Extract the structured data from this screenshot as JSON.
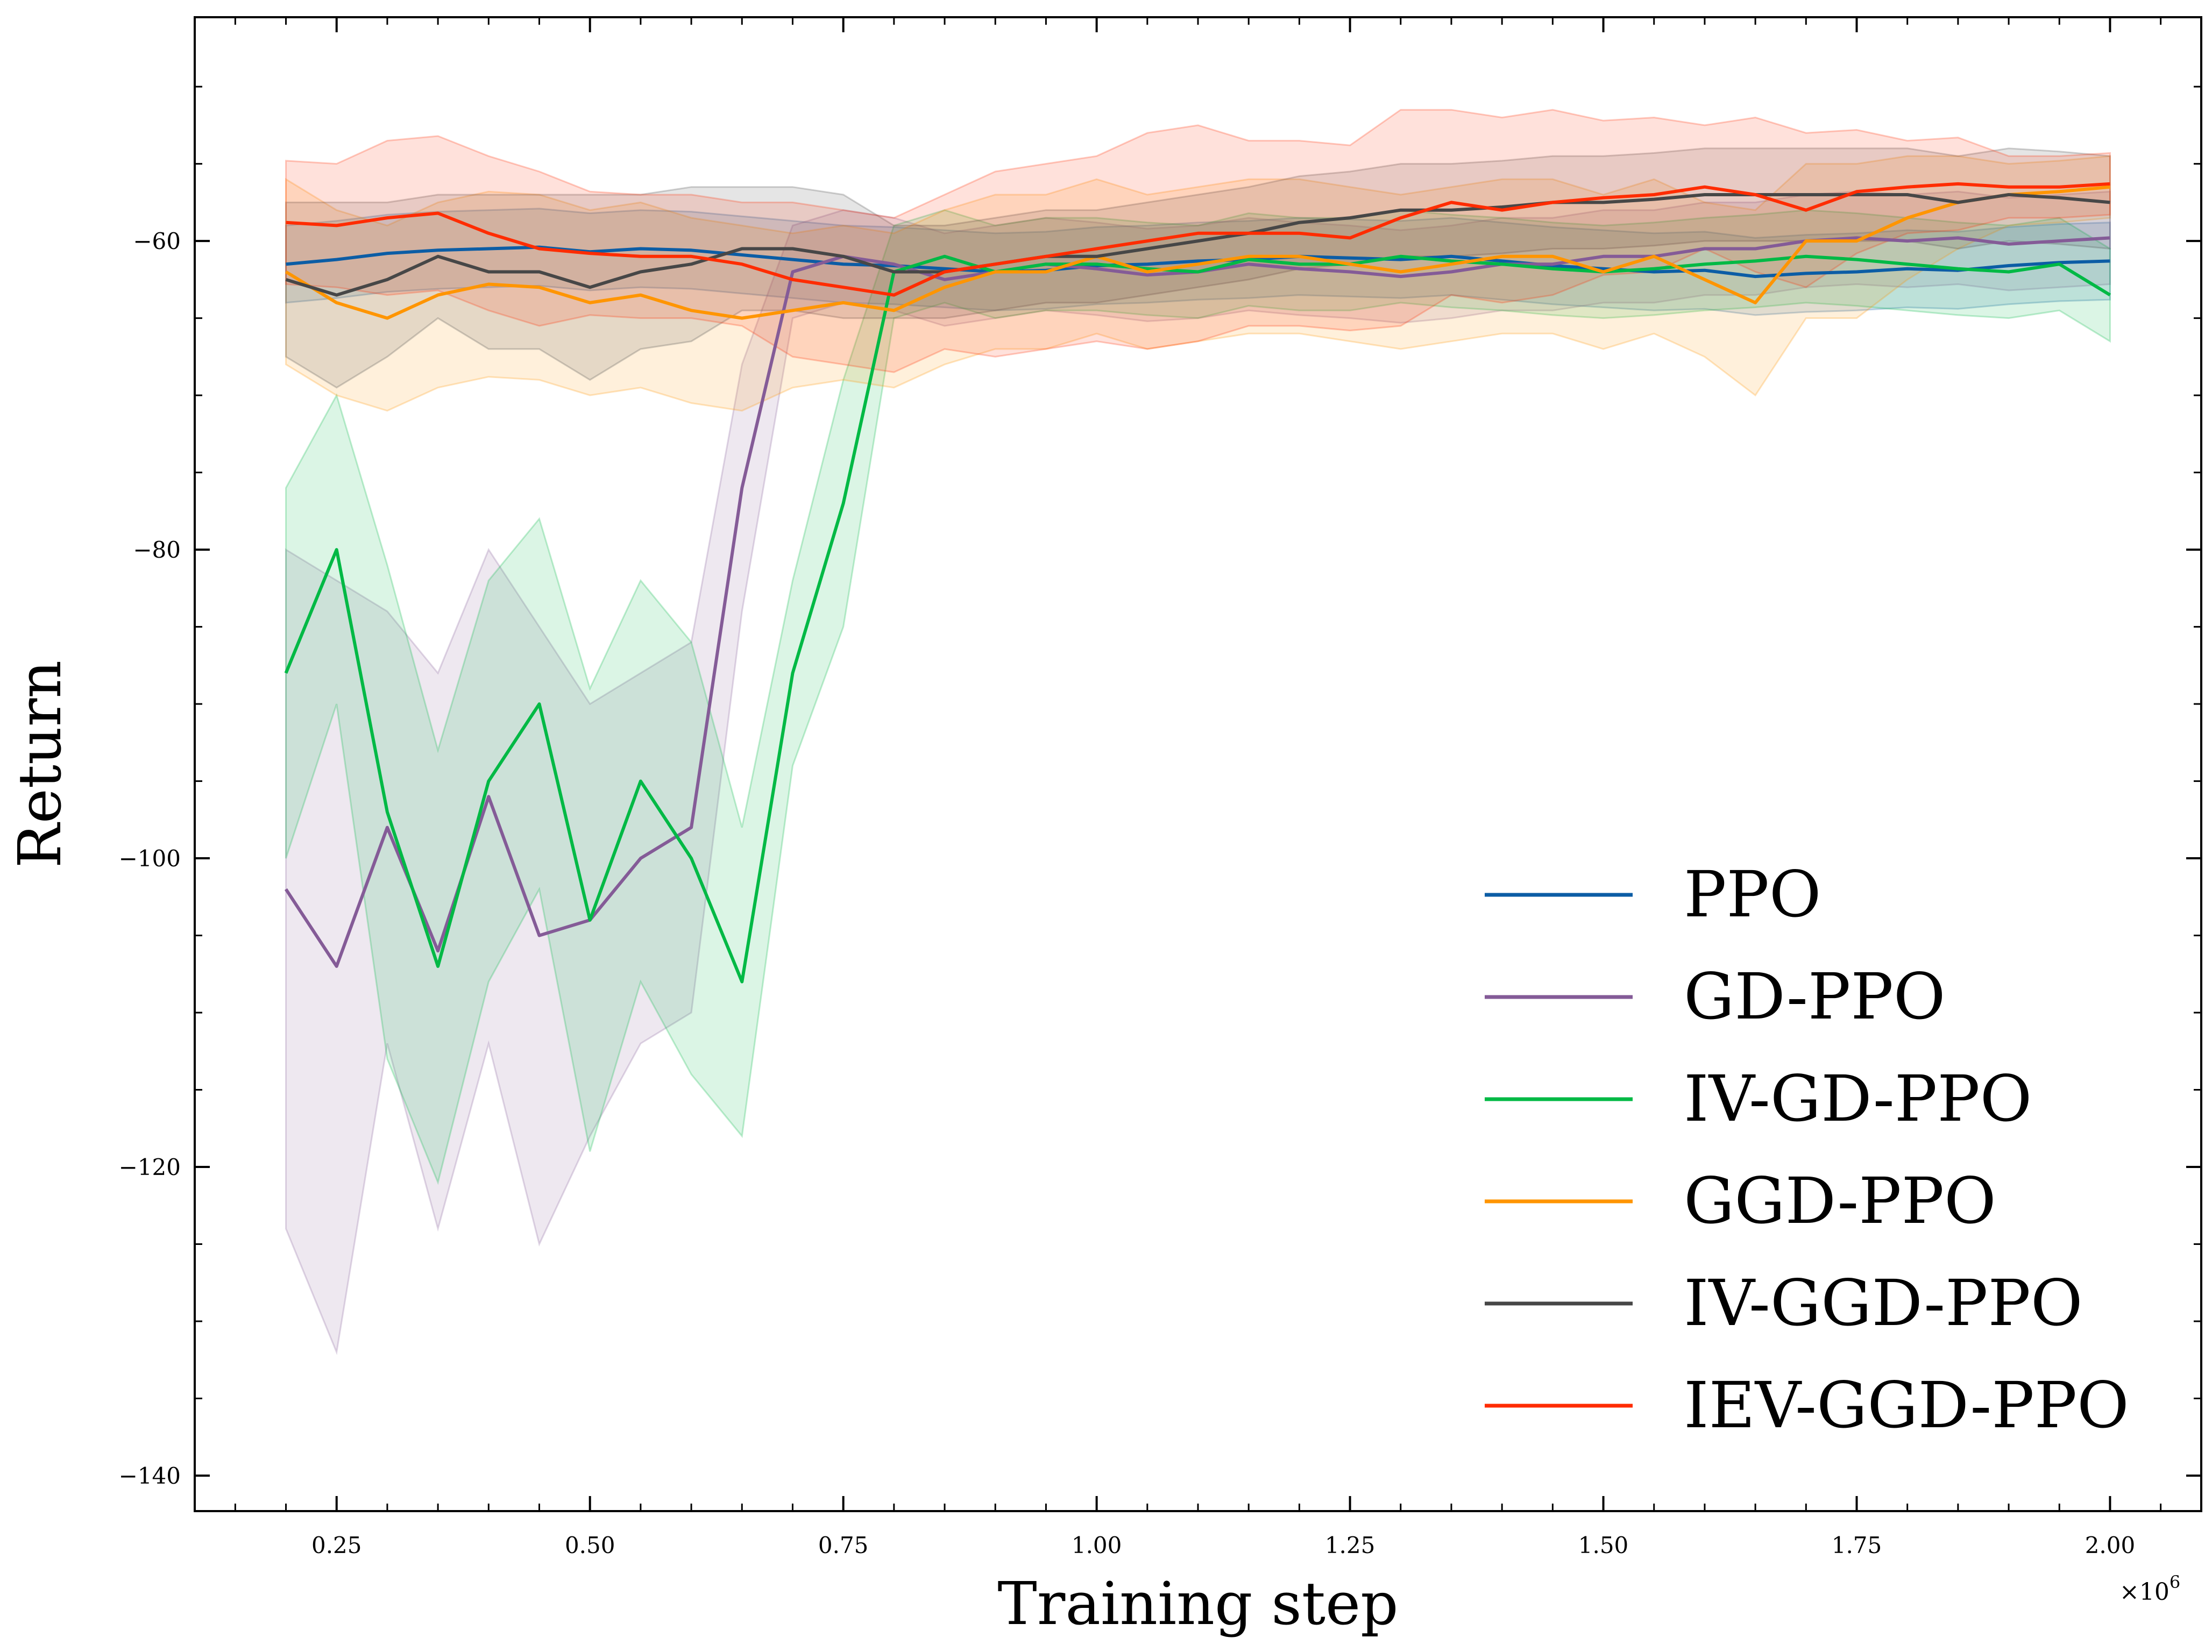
{
  "chart_data": {
    "type": "line",
    "title": "",
    "xlabel": "Training step",
    "ylabel": "Return",
    "x_scale_label": "×10",
    "x_scale_exponent": "6",
    "xlim": [
      0.11,
      2.09
    ],
    "ylim": [
      -142.3,
      -45.5
    ],
    "xticks": [
      0.25,
      0.5,
      0.75,
      1.0,
      1.25,
      1.5,
      1.75,
      2.0
    ],
    "xtick_labels": [
      "0.25",
      "0.50",
      "0.75",
      "1.00",
      "1.25",
      "1.50",
      "1.75",
      "2.00"
    ],
    "yticks": [
      -140,
      -120,
      -100,
      -80,
      -60
    ],
    "ytick_labels": [
      "−140",
      "−120",
      "−100",
      "−80",
      "−60"
    ],
    "x_step": 0.05,
    "x_start": 0.2,
    "legend_position": "lower-right",
    "grid": false,
    "series": [
      {
        "name": "PPO",
        "color": "#0c5da5",
        "values": [
          -61.5,
          -61.2,
          -60.8,
          -60.6,
          -60.5,
          -60.4,
          -60.7,
          -60.5,
          -60.6,
          -60.9,
          -61.2,
          -61.5,
          -61.6,
          -61.8,
          -62.0,
          -61.9,
          -61.6,
          -61.5,
          -61.3,
          -61.2,
          -61.0,
          -61.1,
          -61.2,
          -61.0,
          -61.3,
          -61.6,
          -61.8,
          -62.0,
          -61.9,
          -62.3,
          -62.1,
          -62.0,
          -61.8,
          -61.9,
          -61.6,
          -61.4,
          -61.3
        ],
        "band": [
          2.5,
          2.5,
          2.5,
          2.5,
          2.5,
          2.5,
          2.5,
          2.5,
          2.5,
          2.5,
          2.5,
          2.5,
          2.5,
          2.5,
          2.5,
          2.5,
          2.5,
          2.5,
          2.5,
          2.5,
          2.5,
          2.5,
          2.5,
          2.5,
          2.5,
          2.5,
          2.5,
          2.5,
          2.5,
          2.5,
          2.5,
          2.5,
          2.5,
          2.5,
          2.5,
          2.5,
          2.5
        ]
      },
      {
        "name": "GD-PPO",
        "color": "#845b97",
        "values": [
          -102,
          -107,
          -98,
          -106,
          -96,
          -105,
          -104,
          -100,
          -98,
          -76,
          -62,
          -61,
          -61.5,
          -62.5,
          -62,
          -61.5,
          -61.8,
          -62.2,
          -62.0,
          -61.5,
          -61.8,
          -62.0,
          -62.3,
          -62.0,
          -61.5,
          -61.5,
          -61.0,
          -61.0,
          -60.5,
          -60.5,
          -60.0,
          -59.8,
          -60.0,
          -59.8,
          -60.2,
          -60.0,
          -59.8
        ],
        "band": [
          22,
          25,
          14,
          18,
          16,
          20,
          14,
          12,
          12,
          8,
          3,
          3,
          3,
          3,
          3,
          3,
          3,
          3,
          3,
          3,
          3,
          3,
          3,
          3,
          3,
          3,
          3,
          3,
          3,
          3,
          3,
          3,
          3,
          3,
          3,
          3,
          3
        ]
      },
      {
        "name": "IV-GD-PPO",
        "color": "#00b945",
        "values": [
          -88,
          -80,
          -97,
          -107,
          -95,
          -90,
          -104,
          -95,
          -100,
          -108,
          -88,
          -77,
          -62,
          -61,
          -62,
          -61.5,
          -61.5,
          -61.8,
          -62.0,
          -61.2,
          -61.5,
          -61.5,
          -61.0,
          -61.3,
          -61.5,
          -61.8,
          -62.0,
          -61.8,
          -61.5,
          -61.3,
          -61.0,
          -61.2,
          -61.5,
          -61.8,
          -62.0,
          -61.5,
          -63.5
        ],
        "band": [
          12,
          10,
          16,
          14,
          13,
          12,
          15,
          13,
          14,
          10,
          6,
          8,
          3,
          3,
          3,
          3,
          3,
          3,
          3,
          3,
          3,
          3,
          3,
          3,
          3,
          3,
          3,
          3,
          3,
          3,
          3,
          3,
          3,
          3,
          3,
          3,
          3
        ]
      },
      {
        "name": "GGD-PPO",
        "color": "#ff9500",
        "values": [
          -62,
          -64,
          -65,
          -63.5,
          -62.8,
          -63.0,
          -64.0,
          -63.5,
          -64.5,
          -65.0,
          -64.5,
          -64.0,
          -64.5,
          -63.0,
          -62.0,
          -62.0,
          -61.0,
          -62.0,
          -61.5,
          -61.0,
          -61.0,
          -61.5,
          -62.0,
          -61.5,
          -61.0,
          -61.0,
          -62.0,
          -61.0,
          -62.5,
          -64.0,
          -60.0,
          -60.0,
          -58.5,
          -57.5,
          -57.0,
          -56.8,
          -56.5
        ],
        "band": [
          6,
          6,
          6,
          6,
          6,
          6,
          6,
          6,
          6,
          6,
          5,
          5,
          5,
          5,
          5,
          5,
          5,
          5,
          5,
          5,
          5,
          5,
          5,
          5,
          5,
          5,
          5,
          5,
          5,
          6,
          5,
          5,
          4,
          3,
          2,
          2,
          2
        ]
      },
      {
        "name": "IV-GGD-PPO",
        "color": "#474747",
        "values": [
          -62.5,
          -63.5,
          -62.5,
          -61.0,
          -62.0,
          -62.0,
          -63.0,
          -62.0,
          -61.5,
          -60.5,
          -60.5,
          -61.0,
          -62.0,
          -62.0,
          -61.5,
          -61.0,
          -61.0,
          -60.5,
          -60.0,
          -59.5,
          -58.8,
          -58.5,
          -58.0,
          -58.0,
          -57.8,
          -57.5,
          -57.5,
          -57.3,
          -57.0,
          -57.0,
          -57.0,
          -57.0,
          -57.0,
          -57.5,
          -57.0,
          -57.2,
          -57.5
        ],
        "band": [
          5,
          6,
          5,
          4,
          5,
          5,
          6,
          5,
          5,
          4,
          4,
          4,
          3,
          3,
          3,
          3,
          3,
          3,
          3,
          3,
          3,
          3,
          3,
          3,
          3,
          3,
          3,
          3,
          3,
          3,
          3,
          3,
          3,
          3,
          3,
          3,
          3
        ]
      },
      {
        "name": "IEV-GGD-PPO",
        "color": "#ff2c00",
        "values": [
          -58.8,
          -59.0,
          -58.5,
          -58.2,
          -59.5,
          -60.5,
          -60.8,
          -61.0,
          -61.0,
          -61.5,
          -62.5,
          -63.0,
          -63.5,
          -62.0,
          -61.5,
          -61.0,
          -60.5,
          -60.0,
          -59.5,
          -59.5,
          -59.5,
          -59.8,
          -58.5,
          -57.5,
          -58.0,
          -57.5,
          -57.2,
          -57.0,
          -56.5,
          -57.0,
          -58.0,
          -56.8,
          -56.5,
          -56.3,
          -56.5,
          -56.5,
          -56.3
        ],
        "band": [
          4,
          4,
          5,
          5,
          5,
          5,
          4,
          4,
          4,
          4,
          5,
          5,
          5,
          5,
          6,
          6,
          6,
          7,
          7,
          6,
          6,
          6,
          7,
          6,
          6,
          6,
          5,
          5,
          4,
          5,
          5,
          4,
          3,
          3,
          2,
          2,
          2
        ]
      }
    ]
  }
}
